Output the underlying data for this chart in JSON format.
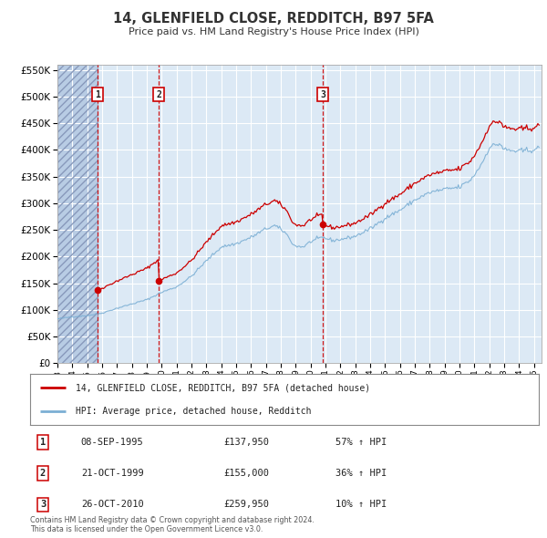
{
  "title": "14, GLENFIELD CLOSE, REDDITCH, B97 5FA",
  "subtitle": "Price paid vs. HM Land Registry's House Price Index (HPI)",
  "title_color": "#333333",
  "background_color": "#ffffff",
  "plot_bg_color": "#dce9f5",
  "hatch_color": "#b8cce4",
  "grid_color": "#ffffff",
  "red_line_color": "#cc0000",
  "blue_line_color": "#7bafd4",
  "sale_events": [
    {
      "num": 1,
      "date": "08-SEP-1995",
      "price": 137950,
      "year": 1995.69,
      "pct": "57%",
      "dir": "↑"
    },
    {
      "num": 2,
      "date": "21-OCT-1999",
      "price": 155000,
      "year": 1999.8,
      "pct": "36%",
      "dir": "↑"
    },
    {
      "num": 3,
      "date": "26-OCT-2010",
      "price": 259950,
      "year": 2010.81,
      "pct": "10%",
      "dir": "↑"
    }
  ],
  "legend_line1": "14, GLENFIELD CLOSE, REDDITCH, B97 5FA (detached house)",
  "legend_line2": "HPI: Average price, detached house, Redditch",
  "footnote1": "Contains HM Land Registry data © Crown copyright and database right 2024.",
  "footnote2": "This data is licensed under the Open Government Licence v3.0.",
  "ylim": [
    0,
    560000
  ],
  "yticks": [
    0,
    50000,
    100000,
    150000,
    200000,
    250000,
    300000,
    350000,
    400000,
    450000,
    500000,
    550000
  ],
  "xmin": 1993.0,
  "xmax": 2025.5,
  "xticks": [
    1993,
    1994,
    1995,
    1996,
    1997,
    1998,
    1999,
    2000,
    2001,
    2002,
    2003,
    2004,
    2005,
    2006,
    2007,
    2008,
    2009,
    2010,
    2011,
    2012,
    2013,
    2014,
    2015,
    2016,
    2017,
    2018,
    2019,
    2020,
    2021,
    2022,
    2023,
    2024,
    2025
  ]
}
